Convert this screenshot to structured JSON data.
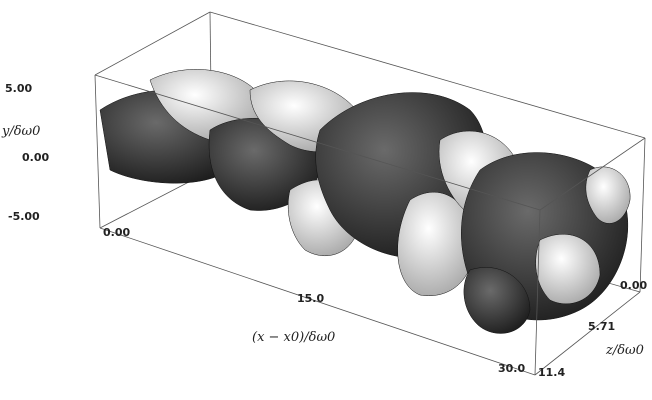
{
  "axes": {
    "y": {
      "label": "y/δω0",
      "ticks": [
        "5.00",
        "0.00",
        "-5.00"
      ]
    },
    "x": {
      "label": "(x − x0)/δω0",
      "ticks": [
        "0.00",
        "15.0",
        "30.0"
      ]
    },
    "z": {
      "label": "z/δω0",
      "ticks": [
        "0.00",
        "5.71",
        "11.4"
      ]
    }
  }
}
